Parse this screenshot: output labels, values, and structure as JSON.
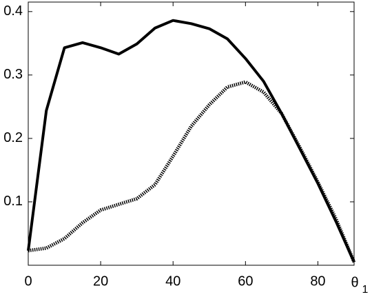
{
  "chart_data": {
    "type": "line",
    "x": [
      0,
      5,
      10,
      15,
      20,
      25,
      30,
      35,
      40,
      45,
      50,
      55,
      60,
      65,
      70,
      75,
      80,
      85,
      90
    ],
    "series": [
      {
        "color": "#000000",
        "dash": "solid",
        "values": [
          0.023,
          0.244,
          0.343,
          0.351,
          0.343,
          0.333,
          0.349,
          0.374,
          0.386,
          0.381,
          0.373,
          0.357,
          0.326,
          0.29,
          0.239,
          0.184,
          0.129,
          0.069,
          0.005
        ]
      },
      {
        "color": "#000000",
        "dash": "dotted",
        "values": [
          0.023,
          0.027,
          0.042,
          0.067,
          0.087,
          0.096,
          0.105,
          0.127,
          0.172,
          0.219,
          0.253,
          0.281,
          0.289,
          0.273,
          0.239,
          0.186,
          0.131,
          0.073,
          0.005
        ]
      }
    ],
    "xlabel": "θ",
    "xlabel_subscript": "1",
    "xlim": [
      0,
      90
    ],
    "ylim": [
      0,
      0.415
    ],
    "xticks": [
      0,
      20,
      40,
      60,
      80
    ],
    "yticks": [
      0.1,
      0.2,
      0.3,
      0.4
    ],
    "grid": false
  }
}
